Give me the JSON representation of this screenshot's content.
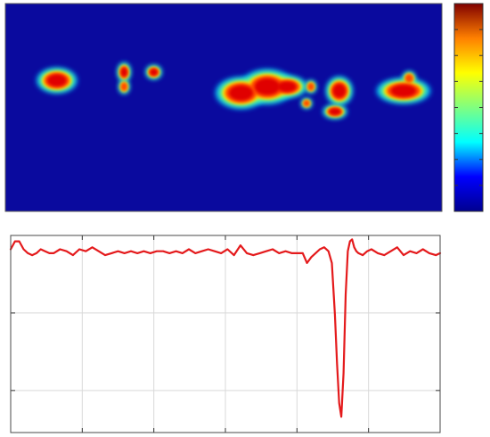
{
  "chart_data": [
    {
      "type": "heatmap",
      "colormap": "jet",
      "background_color": "#0a0a9e",
      "colormap_stops": [
        "#00008f",
        "#0000ff",
        "#00ffff",
        "#80ff80",
        "#ffff00",
        "#ff8000",
        "#800000"
      ],
      "title": "",
      "xlabel": "",
      "ylabel": "",
      "colorbar": true,
      "grid": false,
      "hotspots": [
        {
          "x": 0.118,
          "y": 0.37,
          "rx": 0.03,
          "ry": 0.04,
          "intensity": 1.0
        },
        {
          "x": 0.272,
          "y": 0.33,
          "rx": 0.01,
          "ry": 0.03,
          "intensity": 0.9
        },
        {
          "x": 0.272,
          "y": 0.4,
          "rx": 0.008,
          "ry": 0.022,
          "intensity": 0.8
        },
        {
          "x": 0.34,
          "y": 0.33,
          "rx": 0.012,
          "ry": 0.022,
          "intensity": 0.85
        },
        {
          "x": 0.54,
          "y": 0.43,
          "rx": 0.038,
          "ry": 0.05,
          "intensity": 1.0
        },
        {
          "x": 0.6,
          "y": 0.4,
          "rx": 0.04,
          "ry": 0.055,
          "intensity": 1.0
        },
        {
          "x": 0.645,
          "y": 0.4,
          "rx": 0.03,
          "ry": 0.035,
          "intensity": 1.0
        },
        {
          "x": 0.7,
          "y": 0.4,
          "rx": 0.008,
          "ry": 0.02,
          "intensity": 0.6
        },
        {
          "x": 0.69,
          "y": 0.48,
          "rx": 0.008,
          "ry": 0.016,
          "intensity": 0.6
        },
        {
          "x": 0.765,
          "y": 0.42,
          "rx": 0.02,
          "ry": 0.045,
          "intensity": 1.0
        },
        {
          "x": 0.755,
          "y": 0.52,
          "rx": 0.018,
          "ry": 0.022,
          "intensity": 0.9
        },
        {
          "x": 0.912,
          "y": 0.42,
          "rx": 0.04,
          "ry": 0.04,
          "intensity": 1.0
        },
        {
          "x": 0.925,
          "y": 0.36,
          "rx": 0.01,
          "ry": 0.022,
          "intensity": 0.8
        }
      ]
    },
    {
      "type": "line",
      "title": "",
      "xlabel": "",
      "ylabel": "",
      "line_color": "#e41a1c",
      "grid": true,
      "x_tick_count": 6,
      "y_tick_count": 3,
      "xlim": [
        0,
        1
      ],
      "ylim": [
        0,
        1
      ],
      "x": [
        0.0,
        0.01,
        0.02,
        0.03,
        0.04,
        0.05,
        0.06,
        0.07,
        0.08,
        0.09,
        0.1,
        0.115,
        0.13,
        0.145,
        0.16,
        0.175,
        0.19,
        0.205,
        0.22,
        0.235,
        0.25,
        0.265,
        0.28,
        0.295,
        0.31,
        0.325,
        0.34,
        0.355,
        0.37,
        0.385,
        0.4,
        0.415,
        0.43,
        0.445,
        0.46,
        0.475,
        0.49,
        0.505,
        0.52,
        0.535,
        0.55,
        0.565,
        0.58,
        0.595,
        0.61,
        0.625,
        0.64,
        0.655,
        0.67,
        0.68,
        0.69,
        0.7,
        0.71,
        0.72,
        0.73,
        0.74,
        0.748,
        0.755,
        0.76,
        0.765,
        0.77,
        0.775,
        0.78,
        0.785,
        0.79,
        0.795,
        0.8,
        0.805,
        0.81,
        0.82,
        0.83,
        0.84,
        0.855,
        0.87,
        0.885,
        0.9,
        0.915,
        0.93,
        0.945,
        0.96,
        0.975,
        0.99,
        1.0
      ],
      "series": [
        {
          "values": [
            0.93,
            0.97,
            0.97,
            0.93,
            0.91,
            0.9,
            0.91,
            0.93,
            0.92,
            0.91,
            0.91,
            0.93,
            0.92,
            0.9,
            0.93,
            0.92,
            0.94,
            0.92,
            0.9,
            0.91,
            0.92,
            0.91,
            0.92,
            0.91,
            0.92,
            0.91,
            0.92,
            0.92,
            0.91,
            0.92,
            0.91,
            0.93,
            0.91,
            0.92,
            0.93,
            0.92,
            0.91,
            0.93,
            0.9,
            0.95,
            0.91,
            0.9,
            0.91,
            0.92,
            0.93,
            0.91,
            0.92,
            0.91,
            0.91,
            0.91,
            0.86,
            0.89,
            0.91,
            0.93,
            0.94,
            0.92,
            0.86,
            0.6,
            0.35,
            0.15,
            0.08,
            0.3,
            0.7,
            0.92,
            0.97,
            0.98,
            0.94,
            0.92,
            0.91,
            0.9,
            0.92,
            0.93,
            0.91,
            0.9,
            0.92,
            0.94,
            0.9,
            0.92,
            0.91,
            0.93,
            0.91,
            0.9,
            0.91
          ]
        }
      ]
    }
  ]
}
